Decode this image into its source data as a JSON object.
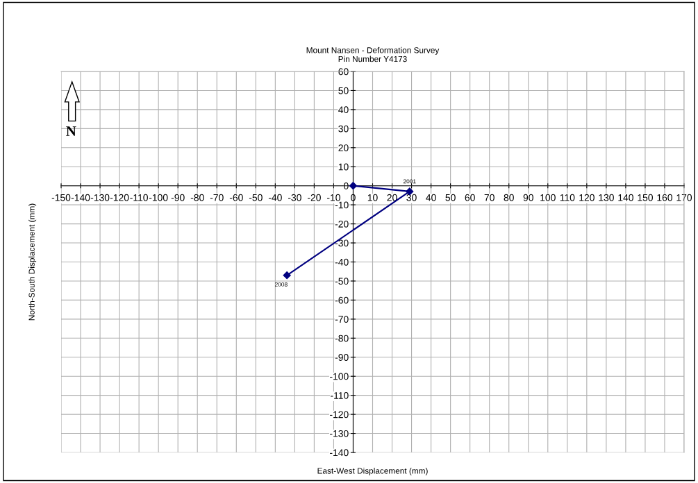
{
  "chart_data": {
    "type": "line",
    "title": "Mount Nansen - Deformation Survey\nPin Number Y4173",
    "xlabel": "East-West Displacement (mm)",
    "ylabel": "North-South Displacement (mm)",
    "x": [
      0,
      29,
      -34
    ],
    "series": [
      {
        "color": "#000080",
        "values": [
          0,
          -3,
          -47
        ]
      }
    ],
    "marker": "diamond",
    "line_style": "solid",
    "grid": true,
    "legend": false,
    "xlim": [
      -150,
      170
    ],
    "xticks": [
      -150,
      -140,
      -130,
      -120,
      -110,
      -100,
      -90,
      -80,
      -70,
      -60,
      -50,
      -40,
      -30,
      -20,
      -10,
      0,
      10,
      20,
      30,
      40,
      50,
      60,
      70,
      80,
      90,
      100,
      110,
      120,
      130,
      140,
      150,
      160,
      170
    ],
    "ylim": [
      -140,
      60
    ],
    "yticks": [
      -140,
      -130,
      -120,
      -110,
      -100,
      -90,
      -80,
      -70,
      -60,
      -50,
      -40,
      -30,
      -20,
      -10,
      0,
      10,
      20,
      30,
      40,
      50,
      60
    ],
    "annotations": [
      {
        "text": "2001",
        "x": 29,
        "y": -3
      },
      {
        "text": "2008",
        "x": -34,
        "y": -47
      },
      "N"
    ]
  }
}
